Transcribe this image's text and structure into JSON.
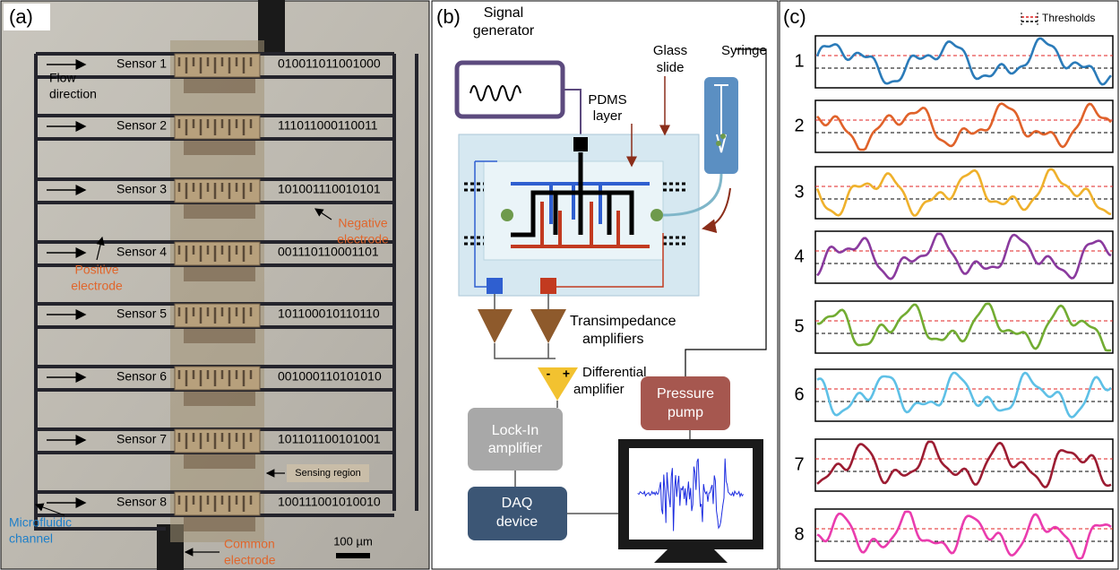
{
  "panel_a": {
    "label": "(a)",
    "sensors": [
      {
        "name": "Sensor 1",
        "code": "010011011001000"
      },
      {
        "name": "Sensor 2",
        "code": "111011000110011"
      },
      {
        "name": "Sensor 3",
        "code": "101001110010101"
      },
      {
        "name": "Sensor 4",
        "code": "001110110001101"
      },
      {
        "name": "Sensor 5",
        "code": "101100010110110"
      },
      {
        "name": "Sensor 6",
        "code": "001000110101010"
      },
      {
        "name": "Sensor 7",
        "code": "101101100101001"
      },
      {
        "name": "Sensor 8",
        "code": "100111001010010"
      }
    ],
    "flow_direction": [
      "Flow",
      "direction"
    ],
    "negative_electrode": [
      "Negative",
      "electrode"
    ],
    "positive_electrode": [
      "Positive",
      "electrode"
    ],
    "sensing_region": "Sensing region",
    "microfluidic_channel": [
      "Microfluidic",
      "channel"
    ],
    "common_electrode": [
      "Common",
      "electrode"
    ],
    "scale_bar": "100 µm"
  },
  "panel_b": {
    "label": "(b)",
    "signal_generator": [
      "Signal",
      "generator"
    ],
    "glass_slide": [
      "Glass",
      "slide"
    ],
    "syringe": "Syringe",
    "pdms_layer": [
      "PDMS",
      "layer"
    ],
    "transimpedance_amplifiers": [
      "Transimpedance",
      "amplifiers"
    ],
    "differential_amplifier": [
      "Differential",
      "amplifier"
    ],
    "minus": "-",
    "plus": "+",
    "lock_in_amplifier": [
      "Lock-In",
      "amplifier"
    ],
    "pressure_pump": [
      "Pressure",
      "pump"
    ],
    "daq_device": [
      "DAQ",
      "device"
    ]
  },
  "panel_c": {
    "label": "(c)",
    "legend": "Thresholds",
    "traces": [
      {
        "label": "1",
        "color": "#2b7bb9"
      },
      {
        "label": "2",
        "color": "#e0622a"
      },
      {
        "label": "3",
        "color": "#efb12c"
      },
      {
        "label": "4",
        "color": "#8a3a9e"
      },
      {
        "label": "5",
        "color": "#72ac32"
      },
      {
        "label": "6",
        "color": "#5ec0e6"
      },
      {
        "label": "7",
        "color": "#9c1c32"
      },
      {
        "label": "8",
        "color": "#ea3cae"
      }
    ]
  }
}
